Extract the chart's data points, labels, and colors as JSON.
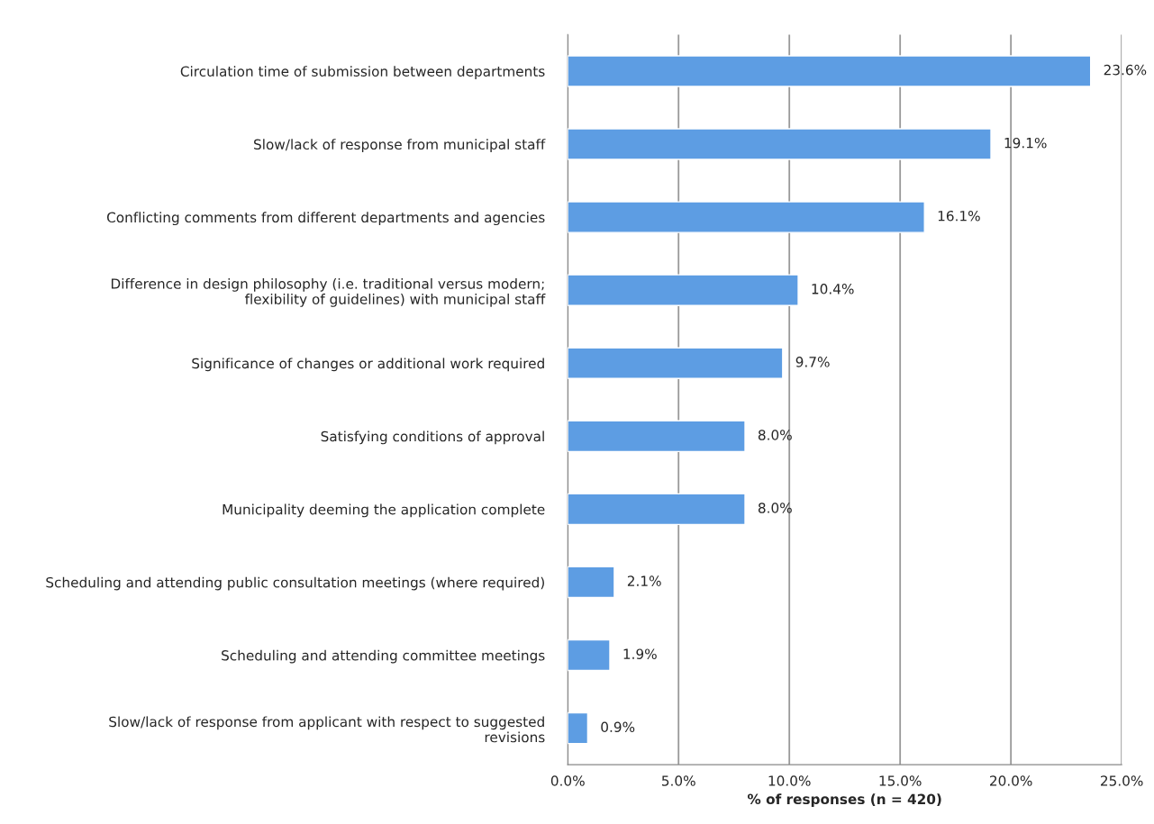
{
  "chart_data": {
    "type": "bar",
    "orientation": "horizontal",
    "xlabel": "% of responses (n = 420)",
    "categories": [
      "Circulation time of submission between departments",
      "Slow/lack of response from municipal staff",
      "Conflicting comments from different departments and agencies",
      "Difference in design philosophy (i.e. traditional versus modern;\nflexibility of guidelines) with municipal staff",
      "Significance of changes or additional work required",
      "Satisfying conditions of approval",
      "Municipality deeming the application complete",
      "Scheduling and attending public consultation meetings (where required)",
      "Scheduling and attending committee meetings",
      "Slow/lack of response from applicant with respect to suggested\nrevisions"
    ],
    "values": [
      23.6,
      19.1,
      16.1,
      10.4,
      9.7,
      8.0,
      8.0,
      2.1,
      1.9,
      0.9
    ],
    "value_labels": [
      "23.6%",
      "19.1%",
      "16.1%",
      "10.4%",
      "9.7%",
      "8.0%",
      "8.0%",
      "2.1%",
      "1.9%",
      "0.9%"
    ],
    "color": "#5d9de3",
    "xlim": [
      0,
      25
    ],
    "xticks": [
      {
        "value": 0,
        "label": "0.0%"
      },
      {
        "value": 5,
        "label": "5.0%"
      },
      {
        "value": 10,
        "label": "10.0%"
      },
      {
        "value": 15,
        "label": "15.0%"
      },
      {
        "value": 20,
        "label": "20.0%"
      },
      {
        "value": 25,
        "label": "25.0%"
      }
    ],
    "grid": "x",
    "legend": false
  }
}
